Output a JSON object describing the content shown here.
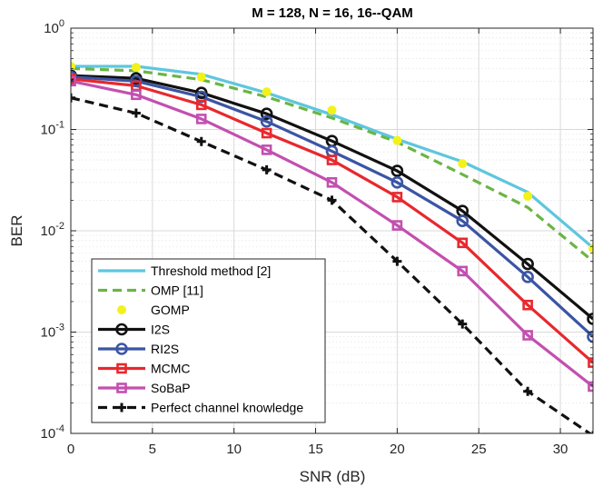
{
  "chart_data": {
    "type": "line",
    "title": "M = 128, N = 16, 16--QAM",
    "xlabel": "SNR (dB)",
    "ylabel": "BER",
    "xlim": [
      0,
      32
    ],
    "ylim": [
      0.0001,
      1
    ],
    "yscale": "log",
    "grid": true,
    "legend_position": "bottom-left",
    "x_ticks": [
      0,
      5,
      10,
      15,
      20,
      25,
      30
    ],
    "x_tick_labels": [
      "0",
      "5",
      "10",
      "15",
      "20",
      "25",
      "30"
    ],
    "y_ticks": [
      0.0001,
      0.001,
      0.01,
      0.1,
      1
    ],
    "y_tick_labels": [
      {
        "base": "10",
        "exp": "-4"
      },
      {
        "base": "10",
        "exp": "-3"
      },
      {
        "base": "10",
        "exp": "-2"
      },
      {
        "base": "10",
        "exp": "-1"
      },
      {
        "base": "10",
        "exp": "0"
      }
    ],
    "x": [
      0,
      4,
      8,
      12,
      16,
      20,
      24,
      28,
      32
    ],
    "series": [
      {
        "name": "Threshold method [2]",
        "color": "#5ec6de",
        "line": "solid",
        "marker": "none",
        "values": [
          0.42,
          0.42,
          0.35,
          0.23,
          0.14,
          0.08,
          0.048,
          0.024,
          0.0068
        ]
      },
      {
        "name": "OMP [11]",
        "color": "#6ab545",
        "line": "dashed",
        "marker": "none",
        "values": [
          0.4,
          0.38,
          0.31,
          0.21,
          0.13,
          0.075,
          0.036,
          0.017,
          0.005
        ]
      },
      {
        "name": "GOMP",
        "color": "#f2f21a",
        "line": "none",
        "marker": "dot",
        "values": [
          0.42,
          0.41,
          0.33,
          0.235,
          0.155,
          0.078,
          0.046,
          0.022,
          0.0067
        ]
      },
      {
        "name": "I2S",
        "color": "#111111",
        "line": "solid",
        "marker": "circle",
        "values": [
          0.34,
          0.32,
          0.23,
          0.143,
          0.077,
          0.039,
          0.0157,
          0.0047,
          0.00135
        ]
      },
      {
        "name": "RI2S",
        "color": "#3b55a4",
        "line": "solid",
        "marker": "circle",
        "values": [
          0.33,
          0.3,
          0.21,
          0.12,
          0.061,
          0.03,
          0.0125,
          0.0035,
          0.0009
        ]
      },
      {
        "name": "MCMC",
        "color": "#e8282e",
        "line": "solid",
        "marker": "square",
        "values": [
          0.315,
          0.27,
          0.175,
          0.092,
          0.05,
          0.0215,
          0.0076,
          0.00185,
          0.0005
        ]
      },
      {
        "name": "SoBaP",
        "color": "#c34fb0",
        "line": "solid",
        "marker": "square",
        "values": [
          0.3,
          0.22,
          0.127,
          0.063,
          0.03,
          0.0113,
          0.004,
          0.00093,
          0.00029
        ]
      },
      {
        "name": "Perfect channel knowledge",
        "color": "#111111",
        "line": "dashed",
        "marker": "plus",
        "values": [
          0.205,
          0.145,
          0.076,
          0.04,
          0.02,
          0.005,
          0.0012,
          0.00026,
          9.5e-05
        ]
      }
    ]
  }
}
